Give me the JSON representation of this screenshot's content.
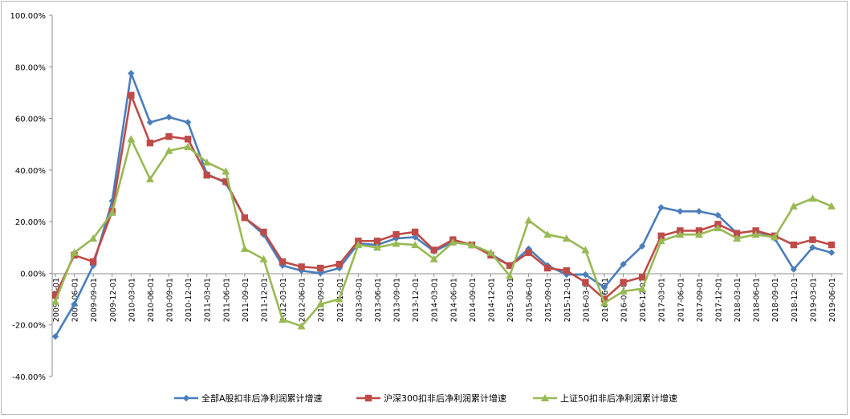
{
  "chart_data": {
    "type": "line",
    "title": "",
    "xlabel": "",
    "ylabel": "",
    "ylim": [
      -40,
      100
    ],
    "ytick_step": 20,
    "y_tick_labels": [
      "-40.00%",
      "-20.00%",
      "0.00%",
      "20.00%",
      "40.00%",
      "60.00%",
      "80.00%",
      "100.00%"
    ],
    "grid": false,
    "legend_position": "bottom",
    "categories": [
      "2009-03-01",
      "2009-06-01",
      "2009-09-01",
      "2009-12-01",
      "2010-03-01",
      "2010-06-01",
      "2010-09-01",
      "2010-12-01",
      "2011-03-01",
      "2011-06-01",
      "2011-09-01",
      "2011-12-01",
      "2012-03-01",
      "2012-06-01",
      "2012-09-01",
      "2012-12-01",
      "2013-03-01",
      "2013-06-01",
      "2013-09-01",
      "2013-12-01",
      "2014-03-01",
      "2014-06-01",
      "2014-09-01",
      "2014-12-01",
      "2015-03-01",
      "2015-06-01",
      "2015-09-01",
      "2015-12-01",
      "2016-03-01",
      "2016-06-01",
      "2016-09-01",
      "2016-12-01",
      "2017-03-01",
      "2017-06-01",
      "2017-09-01",
      "2017-12-01",
      "2018-03-01",
      "2018-06-01",
      "2018-09-01",
      "2018-12-01",
      "2019-03-01",
      "2019-06-01"
    ],
    "series": [
      {
        "name": "全部A股扣非后净利润累计增速",
        "color": "#4a7ebb",
        "marker": "diamond",
        "values": [
          -24.5,
          -12,
          3,
          28,
          77.5,
          58.5,
          60.5,
          58.5,
          38.5,
          35,
          21.5,
          15,
          3,
          1,
          0,
          2,
          11.5,
          11,
          13.5,
          14,
          8.5,
          12,
          11,
          7.5,
          3,
          9.5,
          3,
          -0.5,
          -0.5,
          -5.5,
          3.5,
          10.5,
          25.5,
          24,
          24,
          22.5,
          15.5,
          16.5,
          13.5,
          1.5,
          10,
          8
        ]
      },
      {
        "name": "沪深300扣非后净利润累计增速",
        "color": "#be4b48",
        "marker": "square",
        "values": [
          -8.5,
          7,
          4.5,
          24,
          69,
          50.5,
          53,
          52,
          38,
          35.5,
          21.5,
          16,
          4.5,
          2.5,
          2,
          3.5,
          12.5,
          12.5,
          15,
          16,
          9,
          13,
          11,
          7,
          3,
          8,
          2,
          1,
          -3.5,
          -10,
          -3.5,
          -1.5,
          14.5,
          16.5,
          16.5,
          19,
          15.5,
          16.5,
          14.5,
          11,
          13,
          11
        ]
      },
      {
        "name": "上证50扣非后净利润累计增速",
        "color": "#98b954",
        "marker": "triangle",
        "values": [
          -11,
          8,
          13.5,
          23.5,
          52,
          36.5,
          47.5,
          49,
          43,
          39.5,
          9.5,
          5.5,
          -18,
          -20.5,
          -12,
          -10,
          11,
          10,
          11.5,
          11,
          5.5,
          12,
          11,
          8,
          -1,
          20.5,
          15,
          13.5,
          9,
          -11.5,
          -7,
          -6,
          12.5,
          15,
          15,
          17.5,
          13.5,
          15,
          14,
          26,
          29,
          26
        ]
      }
    ]
  }
}
